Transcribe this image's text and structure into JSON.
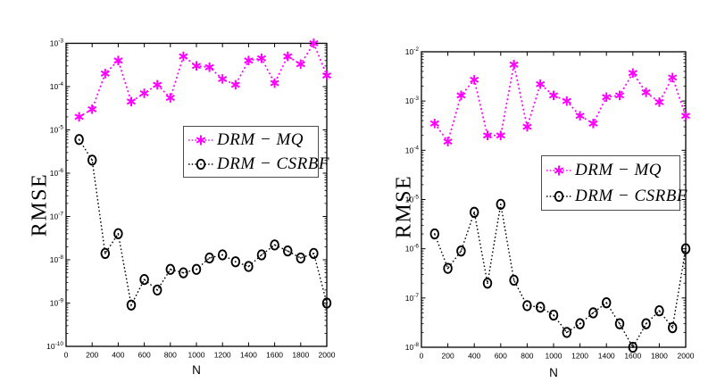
{
  "figure": {
    "background_color": "#ffffff"
  },
  "chart_data": [
    {
      "type": "line",
      "title": "",
      "xlabel": "N",
      "ylabel": "RMSE",
      "xlim": [
        0,
        2000
      ],
      "xticks": [
        0,
        200,
        400,
        600,
        800,
        1000,
        1200,
        1400,
        1600,
        1800,
        2000
      ],
      "yscale": "log",
      "ylim": [
        1e-10,
        0.001
      ],
      "ytick_exponents": [
        -3,
        -4,
        -5,
        -6,
        -7,
        -8,
        -9,
        -10
      ],
      "grid": false,
      "legend_position": "inside-upper-right",
      "x": [
        100,
        200,
        300,
        400,
        500,
        600,
        700,
        800,
        900,
        1000,
        1100,
        1200,
        1300,
        1400,
        1500,
        1600,
        1700,
        1800,
        1900,
        2000
      ],
      "series": [
        {
          "name": "DRM − MQ",
          "color": "#ff00ff",
          "marker": "asterisk",
          "line_style": "dotted",
          "values": [
            2e-05,
            3e-05,
            0.0002,
            0.0004,
            4.5e-05,
            7e-05,
            0.00011,
            5.5e-05,
            0.0005,
            0.0003,
            0.00028,
            0.00015,
            0.00011,
            0.0004,
            0.00045,
            0.00012,
            0.0005,
            0.00033,
            0.001,
            0.00018
          ]
        },
        {
          "name": "DRM − CSRBF",
          "color": "#000000",
          "marker": "open-circle",
          "line_style": "dotted",
          "values": [
            6e-06,
            2e-06,
            1.4e-08,
            4e-08,
            9e-10,
            3.5e-09,
            2e-09,
            6e-09,
            5e-09,
            6e-09,
            1.1e-08,
            1.3e-08,
            9e-09,
            7e-09,
            1.3e-08,
            2.2e-08,
            1.6e-08,
            1.1e-08,
            1.4e-08,
            1e-09
          ]
        }
      ]
    },
    {
      "type": "line",
      "title": "",
      "xlabel": "N",
      "ylabel": "RMSE",
      "xlim": [
        0,
        2000
      ],
      "xticks": [
        0,
        200,
        400,
        600,
        800,
        1000,
        1200,
        1400,
        1600,
        1800,
        2000
      ],
      "yscale": "log",
      "ylim": [
        1e-08,
        0.01
      ],
      "ytick_exponents": [
        -2,
        -3,
        -4,
        -5,
        -6,
        -7,
        -8
      ],
      "grid": false,
      "legend_position": "inside-middle-right",
      "x": [
        100,
        200,
        300,
        400,
        500,
        600,
        700,
        800,
        900,
        1000,
        1100,
        1200,
        1300,
        1400,
        1500,
        1600,
        1700,
        1800,
        1900,
        2000
      ],
      "series": [
        {
          "name": "DRM − MQ",
          "color": "#ff00ff",
          "marker": "asterisk",
          "line_style": "dotted",
          "values": [
            0.00035,
            0.00015,
            0.0013,
            0.0027,
            0.0002,
            0.0002,
            0.0055,
            0.0003,
            0.0022,
            0.0013,
            0.001,
            0.0005,
            0.00035,
            0.0012,
            0.0013,
            0.0037,
            0.0015,
            0.00095,
            0.003,
            0.0005
          ]
        },
        {
          "name": "DRM − CSRBF",
          "color": "#000000",
          "marker": "open-circle",
          "line_style": "dotted",
          "values": [
            2e-06,
            4e-07,
            9e-07,
            5.5e-06,
            2e-07,
            8e-06,
            2.3e-07,
            7e-08,
            6.5e-08,
            4.5e-08,
            2e-08,
            3e-08,
            5e-08,
            8e-08,
            3e-08,
            1e-08,
            3e-08,
            5.5e-08,
            2.5e-08,
            1e-06
          ]
        }
      ]
    }
  ]
}
